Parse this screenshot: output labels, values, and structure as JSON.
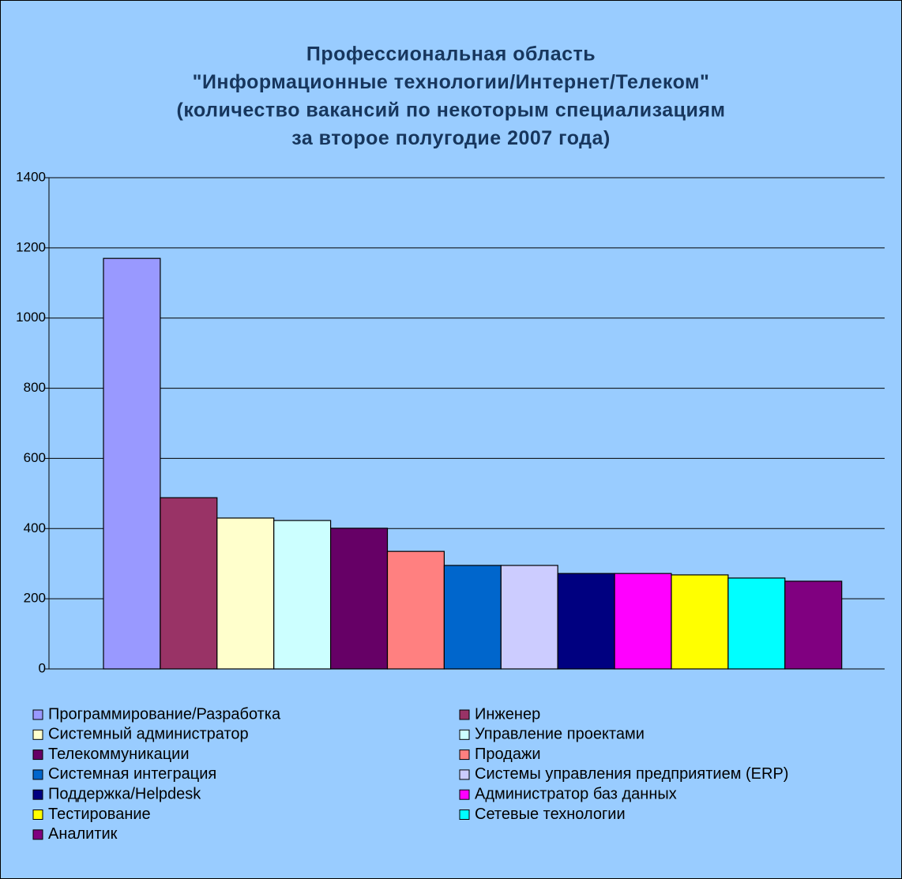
{
  "chart_data": {
    "type": "bar",
    "title": [
      "Профессиональная область",
      "\"Информационные технологии/Интернет/Телеком\"",
      "(количество вакансий по некоторым специализациям",
      "за второе полугодие 2007 года)"
    ],
    "series": [
      {
        "name": "Программирование/Разработка",
        "color": "#9999ff",
        "values": [
          1170
        ]
      },
      {
        "name": "Инженер",
        "color": "#993366",
        "values": [
          488
        ]
      },
      {
        "name": "Системный администратор",
        "color": "#ffffcc",
        "values": [
          430
        ]
      },
      {
        "name": "Управление проектами",
        "color": "#ccffff",
        "values": [
          423
        ]
      },
      {
        "name": "Телекоммуникации",
        "color": "#660066",
        "values": [
          401
        ]
      },
      {
        "name": "Продажи",
        "color": "#ff8080",
        "values": [
          335
        ]
      },
      {
        "name": "Системная интеграция",
        "color": "#0066cc",
        "values": [
          295
        ]
      },
      {
        "name": "Системы управления предприятием (ERP)",
        "color": "#ccccff",
        "values": [
          295
        ]
      },
      {
        "name": "Поддержка/Helpdesk",
        "color": "#000080",
        "values": [
          272
        ]
      },
      {
        "name": "Администратор баз данных",
        "color": "#ff00ff",
        "values": [
          272
        ]
      },
      {
        "name": "Тестирование",
        "color": "#ffff00",
        "values": [
          268
        ]
      },
      {
        "name": "Сетевые технологии",
        "color": "#00ffff",
        "values": [
          259
        ]
      },
      {
        "name": "Аналитик",
        "color": "#800080",
        "values": [
          250
        ]
      }
    ],
    "ylim": [
      0,
      1400
    ],
    "yticks": [
      0,
      200,
      400,
      600,
      800,
      1000,
      1200,
      1400
    ],
    "grid": true,
    "legend": "bottom"
  }
}
